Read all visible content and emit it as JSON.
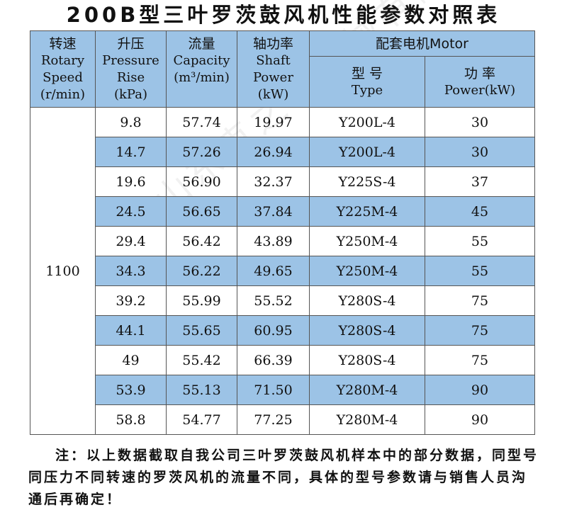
{
  "title": "200B型三叶罗茨鼓风机性能参数对照表",
  "watermark": "山东克之铁机械有限公司",
  "headers": {
    "speed_zh": "转速",
    "speed_en1": "Rotary",
    "speed_en2": "Speed",
    "speed_en3": "(r/min)",
    "pressure_zh": "升压",
    "pressure_en1": "Pressure",
    "pressure_en2": "Rise",
    "pressure_en3": "(kPa)",
    "capacity_zh": "流量",
    "capacity_en1": "Capacity",
    "capacity_en2": "(m³/min)",
    "shaft_zh": "轴功率",
    "shaft_en1": "Shaft",
    "shaft_en2": "Power",
    "shaft_en3": "(kW)",
    "motor_group": "配套电机Motor",
    "type_zh": "型 号",
    "type_en": "Type",
    "power_zh": "功 率",
    "power_en": "Power(kW)"
  },
  "speed": "1100",
  "rows": [
    {
      "pressure": "9.8",
      "capacity": "57.74",
      "shaft": "19.97",
      "type": "Y200L-4",
      "power": "30"
    },
    {
      "pressure": "14.7",
      "capacity": "57.26",
      "shaft": "26.94",
      "type": "Y200L-4",
      "power": "30"
    },
    {
      "pressure": "19.6",
      "capacity": "56.90",
      "shaft": "32.37",
      "type": "Y225S-4",
      "power": "37"
    },
    {
      "pressure": "24.5",
      "capacity": "56.65",
      "shaft": "37.84",
      "type": "Y225M-4",
      "power": "45"
    },
    {
      "pressure": "29.4",
      "capacity": "56.42",
      "shaft": "43.89",
      "type": "Y250M-4",
      "power": "55"
    },
    {
      "pressure": "34.3",
      "capacity": "56.22",
      "shaft": "49.65",
      "type": "Y250M-4",
      "power": "55"
    },
    {
      "pressure": "39.2",
      "capacity": "55.99",
      "shaft": "55.52",
      "type": "Y280S-4",
      "power": "75"
    },
    {
      "pressure": "44.1",
      "capacity": "55.65",
      "shaft": "60.95",
      "type": "Y280S-4",
      "power": "75"
    },
    {
      "pressure": "49",
      "capacity": "55.42",
      "shaft": "66.39",
      "type": "Y280S-4",
      "power": "75"
    },
    {
      "pressure": "53.9",
      "capacity": "55.13",
      "shaft": "71.50",
      "type": "Y280M-4",
      "power": "90"
    },
    {
      "pressure": "58.8",
      "capacity": "54.77",
      "shaft": "77.25",
      "type": "Y280M-4",
      "power": "90"
    }
  ],
  "note": "注：以上数据截取自我公司三叶罗茨鼓风机样本中的部分数据，同型号同压力不同转速的罗茨风机的流量不同，具体的型号参数请与销售人员沟通后再确定！",
  "colors": {
    "header_bg": "#9cc3e6",
    "row_shade": "#9cc3e6",
    "border": "#555555"
  }
}
